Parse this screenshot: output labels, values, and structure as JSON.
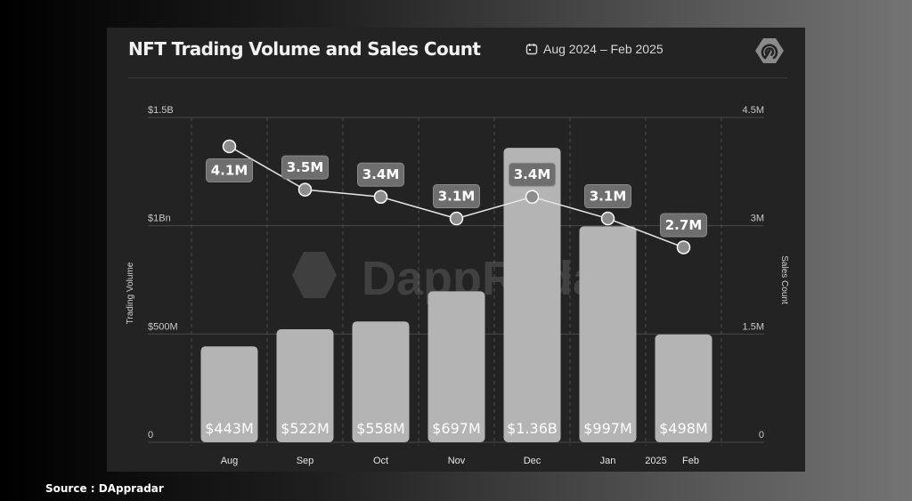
{
  "title": "NFT Trading Volume and Sales Count",
  "date_range": "Aug 2024 – Feb 2025",
  "source": "Source : DAppradar",
  "watermark": "DappRadar",
  "colors": {
    "background": "#232323",
    "bar": "#b4b4b4",
    "line": "#e6e6e6",
    "label_box": "#6e6e6e",
    "text": "#f2f2f2"
  },
  "chart_data": {
    "type": "bar",
    "title": "NFT Trading Volume and Sales Count",
    "categories": [
      "Aug",
      "Sep",
      "Oct",
      "Nov",
      "Dec",
      "Jan",
      "Feb"
    ],
    "year_marker": "2025",
    "series": [
      {
        "name": "Trading Volume",
        "type": "bar",
        "axis": "left",
        "values": [
          443000000,
          522000000,
          558000000,
          697000000,
          1360000000,
          997000000,
          498000000
        ],
        "labels": [
          "$443M",
          "$522M",
          "$558M",
          "$697M",
          "$1.36B",
          "$997M",
          "$498M"
        ]
      },
      {
        "name": "Sales Count",
        "type": "line",
        "axis": "right",
        "values": [
          4100000,
          3500000,
          3400000,
          3100000,
          3400000,
          3100000,
          2700000
        ],
        "labels": [
          "4.1M",
          "3.5M",
          "3.4M",
          "3.1M",
          "3.4M",
          "3.1M",
          "2.7M"
        ]
      }
    ],
    "ylabel": "Trading Volume",
    "y2label": "Sales Count",
    "ylim": [
      0,
      1500000000
    ],
    "y2lim": [
      0,
      4500000
    ],
    "yticks": [
      {
        "value": 0,
        "label": "0"
      },
      {
        "value": 500000000,
        "label": "$500M"
      },
      {
        "value": 1000000000,
        "label": "$1Bn"
      },
      {
        "value": 1500000000,
        "label": "$1.5B"
      }
    ],
    "y2ticks": [
      {
        "value": 0,
        "label": "0"
      },
      {
        "value": 1500000,
        "label": "1.5M"
      },
      {
        "value": 3000000,
        "label": "3M"
      },
      {
        "value": 4500000,
        "label": "4.5M"
      }
    ],
    "grid": true,
    "legend": "none"
  }
}
